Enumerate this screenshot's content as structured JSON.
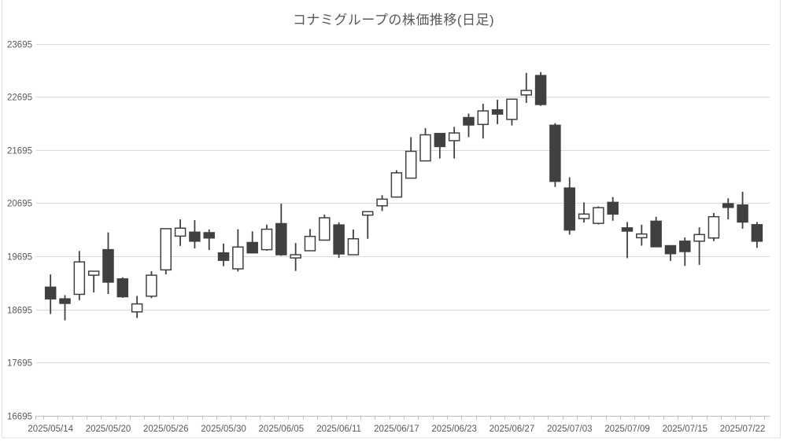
{
  "title": "コナミグループの株価推移(日足)",
  "chart_data": {
    "type": "candlestick",
    "title": "コナミグループの株価推移(日足)",
    "ylim": [
      16695,
      23695
    ],
    "y_ticks": [
      23695,
      22695,
      21695,
      20695,
      19695,
      18695,
      17695,
      16695
    ],
    "grid": true,
    "legend_position": "none",
    "x_tick_every": 4,
    "x_tick_labels": [
      "2025/05/14",
      "2025/05/20",
      "2025/05/26",
      "2025/05/30",
      "2025/06/05",
      "2025/06/11",
      "2025/06/17",
      "2025/06/23",
      "2025/06/27",
      "2025/07/03",
      "2025/07/09",
      "2025/07/15",
      "2025/07/22"
    ],
    "dates": [
      "2025/05/14",
      "2025/05/15",
      "2025/05/16",
      "2025/05/19",
      "2025/05/20",
      "2025/05/21",
      "2025/05/22",
      "2025/05/23",
      "2025/05/26",
      "2025/05/27",
      "2025/05/28",
      "2025/05/29",
      "2025/05/30",
      "2025/06/02",
      "2025/06/03",
      "2025/06/04",
      "2025/06/05",
      "2025/06/06",
      "2025/06/09",
      "2025/06/10",
      "2025/06/11",
      "2025/06/12",
      "2025/06/13",
      "2025/06/16",
      "2025/06/17",
      "2025/06/18",
      "2025/06/19",
      "2025/06/20",
      "2025/06/23",
      "2025/06/24",
      "2025/06/25",
      "2025/06/26",
      "2025/06/27",
      "2025/06/30",
      "2025/07/01",
      "2025/07/02",
      "2025/07/03",
      "2025/07/04",
      "2025/07/07",
      "2025/07/08",
      "2025/07/09",
      "2025/07/10",
      "2025/07/11",
      "2025/07/14",
      "2025/07/15",
      "2025/07/16",
      "2025/07/17",
      "2025/07/18",
      "2025/07/22",
      "2025/07/23"
    ],
    "ohlc": [
      [
        19115,
        19355,
        18610,
        18895
      ],
      [
        18895,
        18965,
        18490,
        18810
      ],
      [
        18980,
        19795,
        18870,
        19590
      ],
      [
        19340,
        19420,
        19015,
        19415
      ],
      [
        19820,
        20145,
        18985,
        19210
      ],
      [
        19270,
        19300,
        18915,
        18935
      ],
      [
        18650,
        18950,
        18535,
        18800
      ],
      [
        18945,
        19415,
        18910,
        19340
      ],
      [
        19440,
        20220,
        19355,
        20215
      ],
      [
        20075,
        20390,
        19890,
        20225
      ],
      [
        20150,
        20375,
        19845,
        19980
      ],
      [
        20140,
        20200,
        19815,
        20040
      ],
      [
        19760,
        19935,
        19510,
        19620
      ],
      [
        19460,
        20205,
        19410,
        19870
      ],
      [
        19955,
        20165,
        19755,
        19760
      ],
      [
        19820,
        20290,
        19800,
        20205
      ],
      [
        20310,
        20685,
        19705,
        19725
      ],
      [
        19665,
        19945,
        19420,
        19725
      ],
      [
        19800,
        20210,
        19795,
        20070
      ],
      [
        20000,
        20480,
        19990,
        20420
      ],
      [
        20285,
        20335,
        19665,
        19740
      ],
      [
        19725,
        20200,
        19720,
        20025
      ],
      [
        20470,
        20540,
        20025,
        20535
      ],
      [
        20645,
        20845,
        20545,
        20770
      ],
      [
        20810,
        21315,
        20800,
        21265
      ],
      [
        21165,
        21935,
        21160,
        21670
      ],
      [
        21490,
        22105,
        21485,
        21980
      ],
      [
        22005,
        22010,
        21535,
        21760
      ],
      [
        21870,
        22130,
        21535,
        22015
      ],
      [
        22305,
        22380,
        21935,
        22165
      ],
      [
        22175,
        22565,
        21910,
        22430
      ],
      [
        22450,
        22640,
        22180,
        22370
      ],
      [
        22270,
        22655,
        22155,
        22650
      ],
      [
        22730,
        23145,
        22580,
        22815
      ],
      [
        23095,
        23160,
        22525,
        22550
      ],
      [
        22160,
        22200,
        21000,
        21105
      ],
      [
        20980,
        21180,
        20105,
        20190
      ],
      [
        20405,
        20710,
        20330,
        20490
      ],
      [
        20315,
        20635,
        20295,
        20610
      ],
      [
        20710,
        20810,
        20365,
        20490
      ],
      [
        20230,
        20340,
        19660,
        20170
      ],
      [
        20045,
        20290,
        19895,
        20115
      ],
      [
        20355,
        20440,
        19870,
        19875
      ],
      [
        19895,
        19900,
        19610,
        19745
      ],
      [
        19980,
        20050,
        19515,
        19785
      ],
      [
        19980,
        20240,
        19535,
        20105
      ],
      [
        20040,
        20510,
        19980,
        20440
      ],
      [
        20685,
        20785,
        20390,
        20615
      ],
      [
        20660,
        20910,
        20215,
        20340
      ],
      [
        20290,
        20340,
        19855,
        19980
      ]
    ],
    "colors": {
      "up_fill": "#ffffff",
      "down_fill": "#404040",
      "stroke": "#404040",
      "grid": "#d9d9d9",
      "axis": "#bfbfbf",
      "text": "#595959",
      "background": "#ffffff"
    }
  }
}
